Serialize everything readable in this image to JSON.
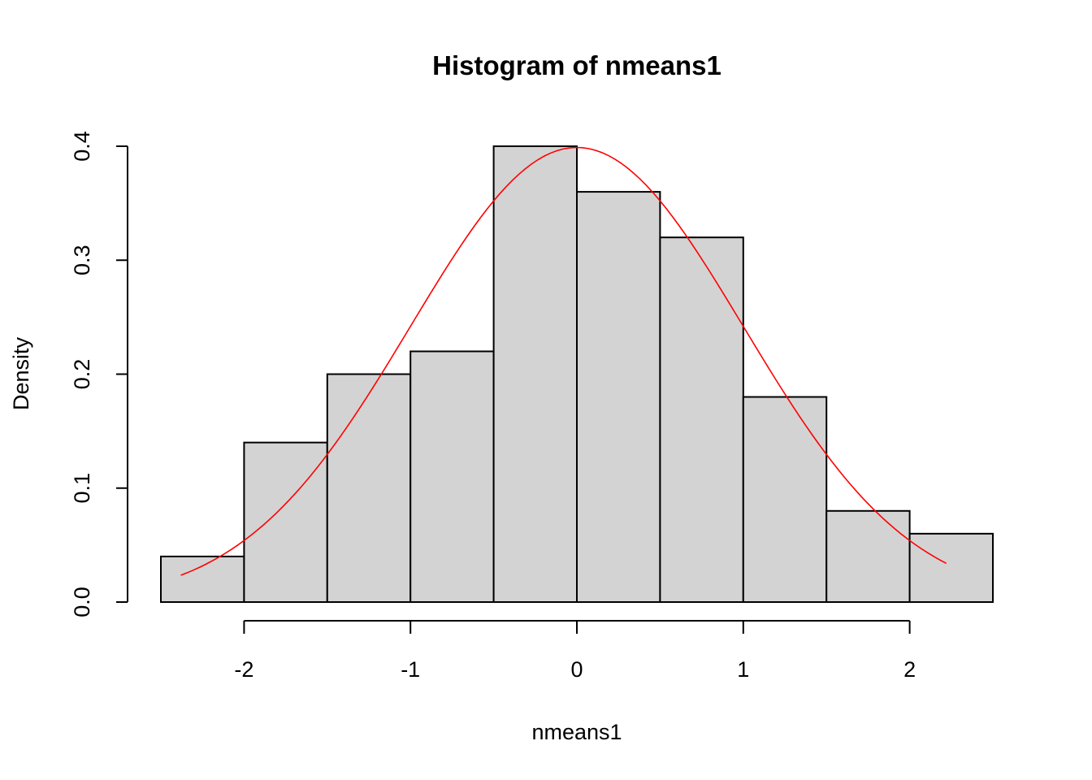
{
  "chart_data": {
    "type": "histogram",
    "title": "Histogram of nmeans1",
    "xlabel": "nmeans1",
    "ylabel": "Density",
    "bins": [
      {
        "x0": -2.5,
        "x1": -2.0,
        "density": 0.04
      },
      {
        "x0": -2.0,
        "x1": -1.5,
        "density": 0.14
      },
      {
        "x0": -1.5,
        "x1": -1.0,
        "density": 0.2
      },
      {
        "x0": -1.0,
        "x1": -0.5,
        "density": 0.22
      },
      {
        "x0": -0.5,
        "x1": 0.0,
        "density": 0.4
      },
      {
        "x0": 0.0,
        "x1": 0.5,
        "density": 0.36
      },
      {
        "x0": 0.5,
        "x1": 1.0,
        "density": 0.32
      },
      {
        "x0": 1.0,
        "x1": 1.5,
        "density": 0.18
      },
      {
        "x0": 1.5,
        "x1": 2.0,
        "density": 0.08
      },
      {
        "x0": 2.0,
        "x1": 2.5,
        "density": 0.06
      }
    ],
    "overlay": {
      "type": "normal-density",
      "mean": 0,
      "sd": 1,
      "x_range": [
        -2.38,
        2.22
      ],
      "color": "#ff0000"
    },
    "x_ticks": [
      -2,
      -1,
      0,
      1,
      2
    ],
    "x_tick_labels": [
      "-2",
      "-1",
      "0",
      "1",
      "2"
    ],
    "y_ticks": [
      0.0,
      0.1,
      0.2,
      0.3,
      0.4
    ],
    "y_tick_labels": [
      "0.0",
      "0.1",
      "0.2",
      "0.3",
      "0.4"
    ],
    "xlim": [
      -2.5,
      2.5
    ],
    "ylim": [
      0,
      0.4
    ],
    "bar_fill": "#d3d3d3",
    "grid": false
  }
}
